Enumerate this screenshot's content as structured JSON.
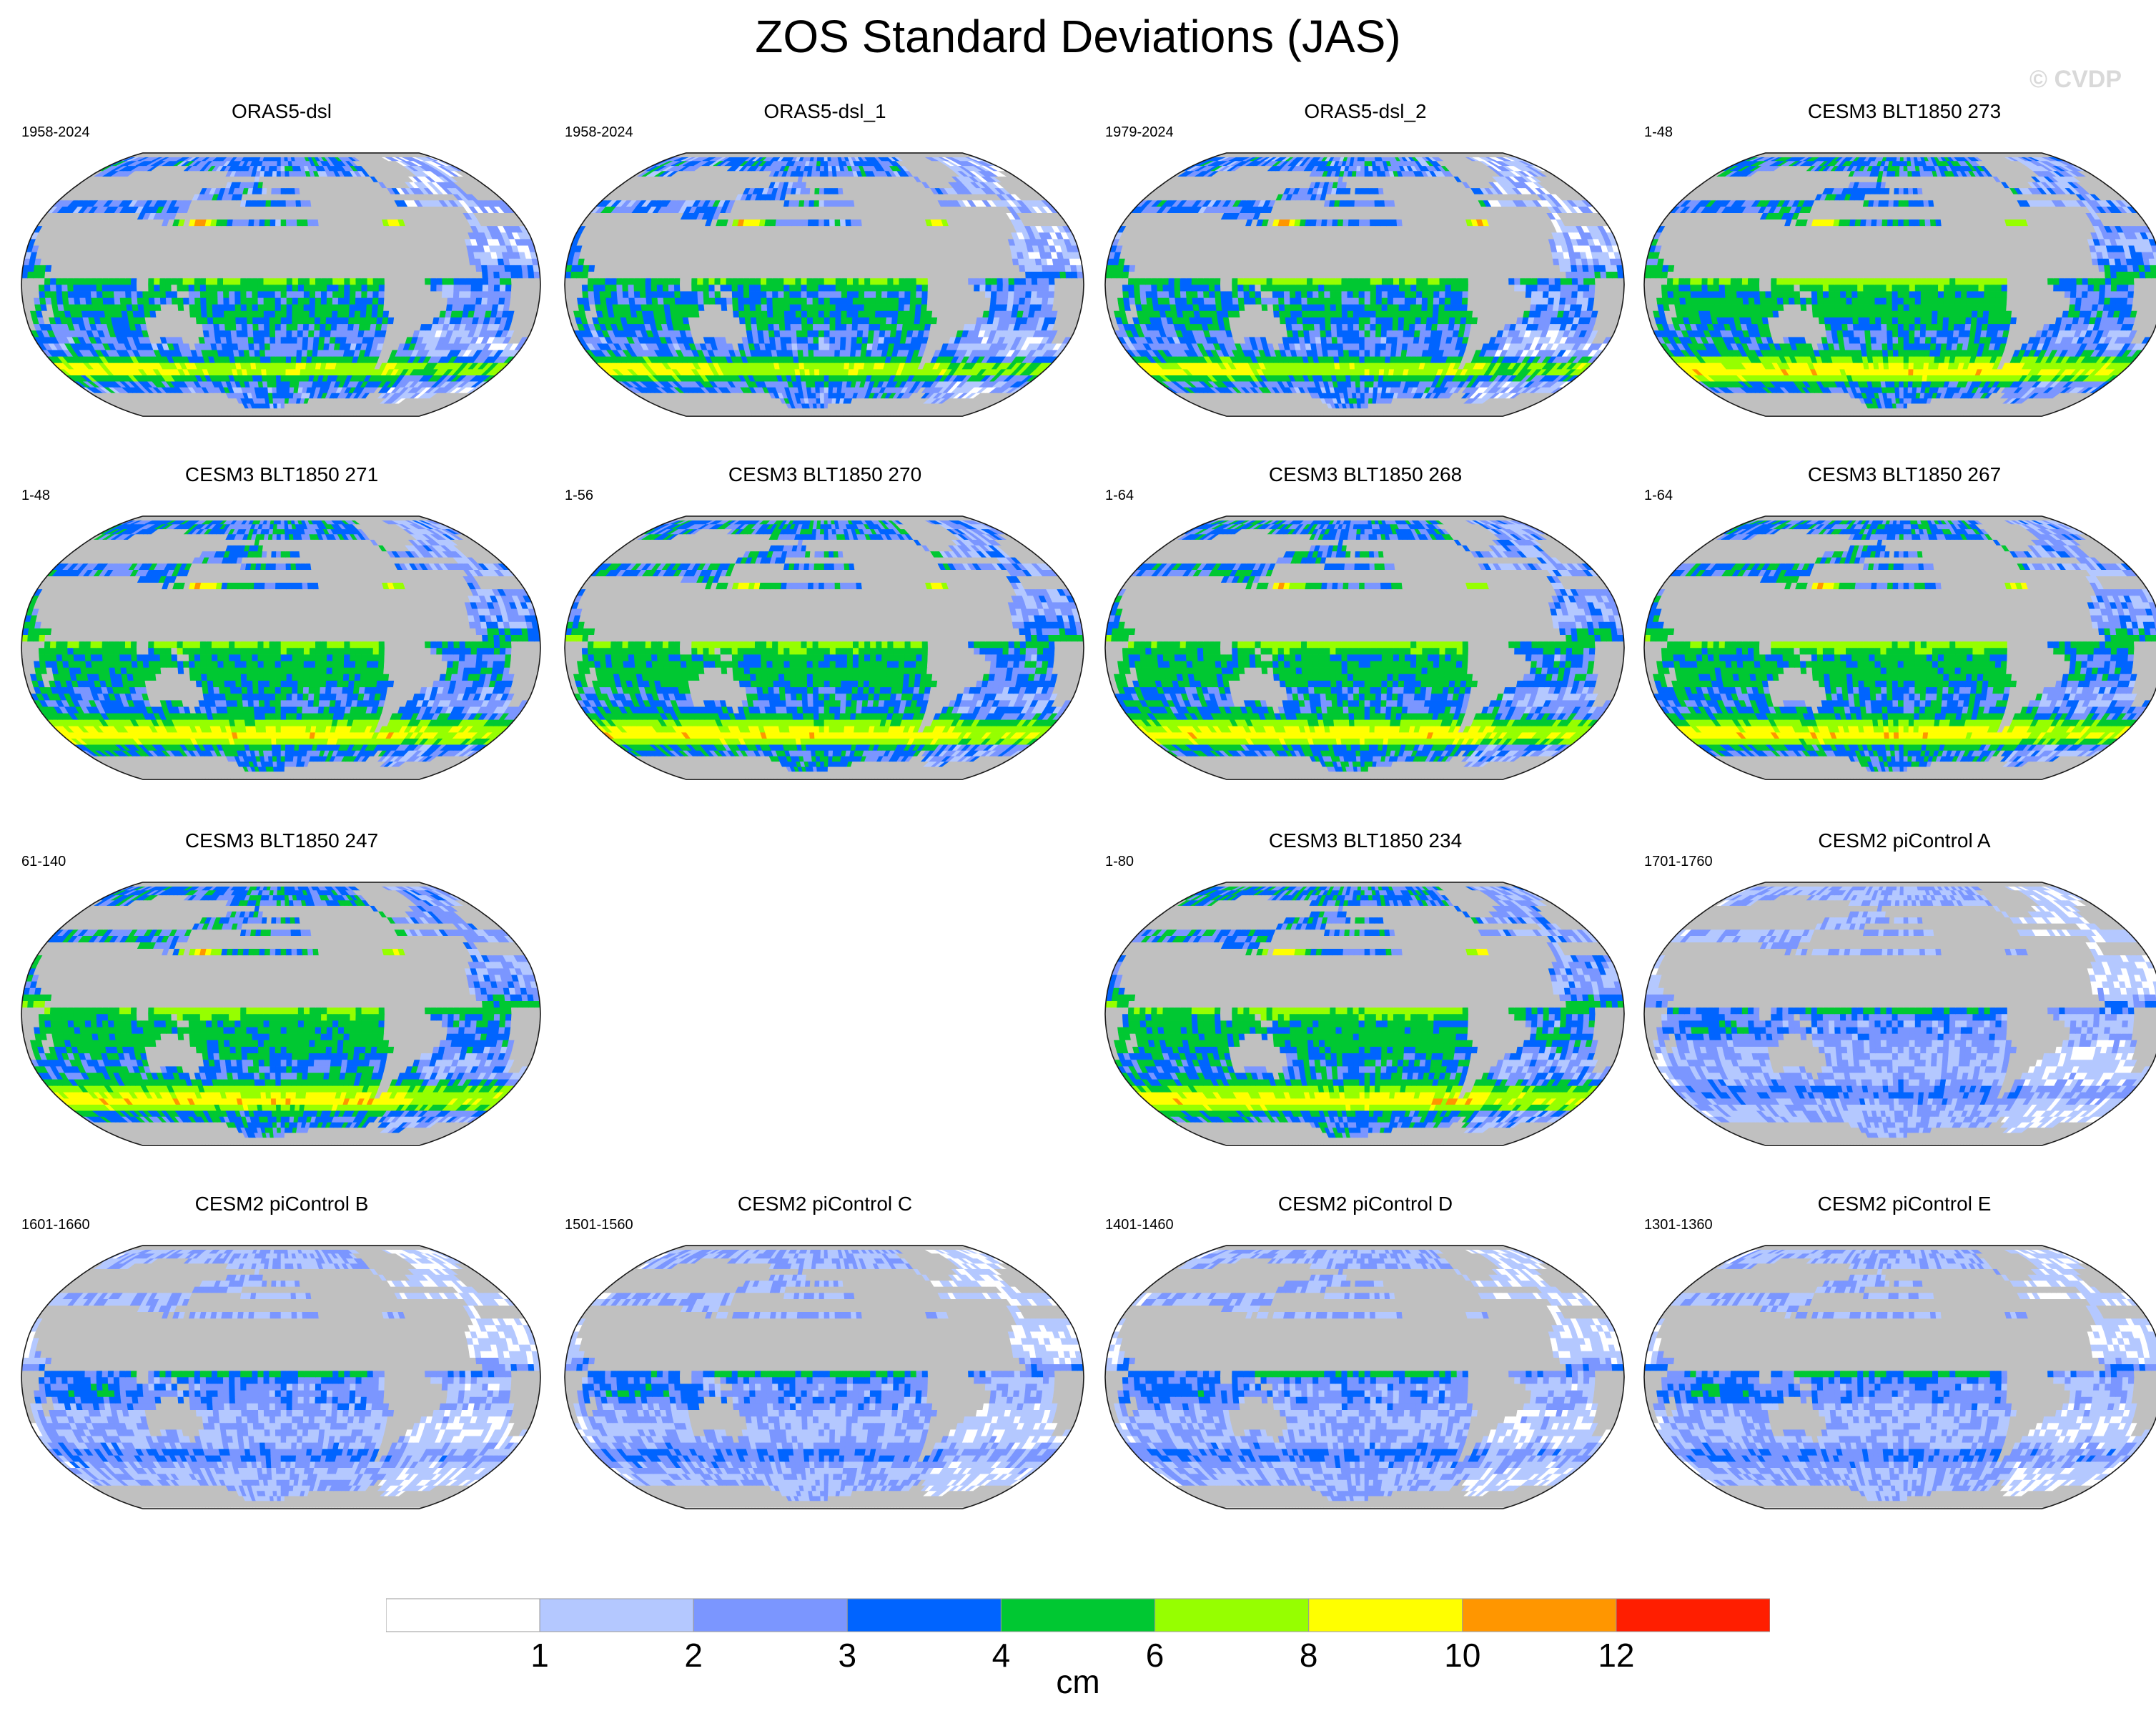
{
  "title": "ZOS Standard Deviations (JAS)",
  "watermark": "© CVDP",
  "colors": {
    "land": "#c0c0c0",
    "ocean_outline": "#1a1a1a",
    "levels": [
      "#ffffff",
      "#b4c8ff",
      "#7b96ff",
      "#0064ff",
      "#00c832",
      "#96ff00",
      "#ffff00",
      "#ff9600",
      "#ff1e00"
    ]
  },
  "chart_data": {
    "type": "heatmap",
    "projection": "Robinson (Pacific-centered)",
    "units": "cm",
    "colorbar": {
      "boundaries": [
        1,
        2,
        3,
        4,
        6,
        8,
        10,
        12
      ],
      "tick_labels": [
        "1",
        "2",
        "3",
        "4",
        "6",
        "8",
        "10",
        "12"
      ],
      "label": "cm"
    },
    "panels": [
      {
        "name": "ORAS5-dsl",
        "years": "1958-2024",
        "row": 0,
        "col": 0,
        "field": "obs"
      },
      {
        "name": "ORAS5-dsl_1",
        "years": "1958-2024",
        "row": 0,
        "col": 1,
        "field": "obs"
      },
      {
        "name": "ORAS5-dsl_2",
        "years": "1979-2024",
        "row": 0,
        "col": 2,
        "field": "obs"
      },
      {
        "name": "CESM3 BLT1850 273",
        "years": "1-48",
        "row": 0,
        "col": 3,
        "field": "cesm3"
      },
      {
        "name": "CESM3 BLT1850 271",
        "years": "1-48",
        "row": 1,
        "col": 0,
        "field": "cesm3"
      },
      {
        "name": "CESM3 BLT1850 270",
        "years": "1-56",
        "row": 1,
        "col": 1,
        "field": "cesm3"
      },
      {
        "name": "CESM3 BLT1850 268",
        "years": "1-64",
        "row": 1,
        "col": 2,
        "field": "cesm3"
      },
      {
        "name": "CESM3 BLT1850 267",
        "years": "1-64",
        "row": 1,
        "col": 3,
        "field": "cesm3"
      },
      {
        "name": "CESM3 BLT1850 247",
        "years": "61-140",
        "row": 2,
        "col": 0,
        "field": "cesm3"
      },
      {
        "name": "CESM3 BLT1850 234",
        "years": "1-80",
        "row": 2,
        "col": 2,
        "field": "cesm3"
      },
      {
        "name": "CESM2 piControl A",
        "years": "1701-1760",
        "row": 2,
        "col": 3,
        "field": "cesm2"
      },
      {
        "name": "CESM2 piControl B",
        "years": "1601-1660",
        "row": 3,
        "col": 0,
        "field": "cesm2"
      },
      {
        "name": "CESM2 piControl C",
        "years": "1501-1560",
        "row": 3,
        "col": 1,
        "field": "cesm2"
      },
      {
        "name": "CESM2 piControl D",
        "years": "1401-1460",
        "row": 3,
        "col": 2,
        "field": "cesm2"
      },
      {
        "name": "CESM2 piControl E",
        "years": "1301-1360",
        "row": 3,
        "col": 3,
        "field": "cesm2"
      }
    ]
  }
}
